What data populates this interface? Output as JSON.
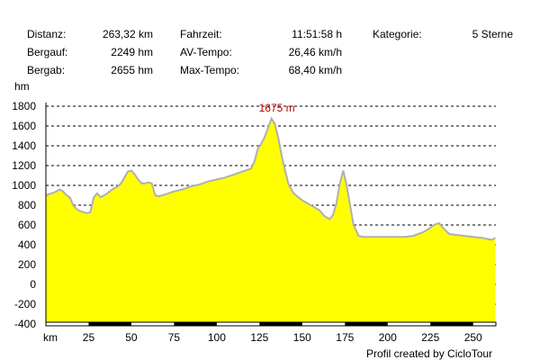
{
  "stats": {
    "distanz_label": "Distanz:",
    "distanz_value": "263,32 km",
    "bergauf_label": "Bergauf:",
    "bergauf_value": "2249 hm",
    "bergab_label": "Bergab:",
    "bergab_value": "2655 hm",
    "fahrzeit_label": "Fahrzeit:",
    "fahrzeit_value": "11:51:58 h",
    "avtempo_label": "AV-Tempo:",
    "avtempo_value": "26,46 km/h",
    "maxtempo_label": "Max-Tempo:",
    "maxtempo_value": "68,40 km/h",
    "kategorie_label": "Kategorie:",
    "kategorie_value": "5 Sterne"
  },
  "footer": "Profil created by CicloTour",
  "chart_data": {
    "type": "area",
    "ylabel": "hm",
    "xlabel": "km",
    "x_tick_labels": [
      "25",
      "50",
      "75",
      "100",
      "125",
      "150",
      "175",
      "200",
      "225",
      "250"
    ],
    "y_tick_labels": [
      "1800",
      "1600",
      "1400",
      "1200",
      "1000",
      "800",
      "600",
      "400",
      "200",
      "0",
      "-200",
      "-400"
    ],
    "xlim": [
      0,
      263.32
    ],
    "ylim": [
      -400,
      1800
    ],
    "grid": true,
    "max_annotation": "1675 m",
    "max_point": [
      132,
      1675
    ],
    "colors": {
      "fill": "#ffff00",
      "line": "#b0b0b0",
      "grid": "#000000",
      "annotation": "#c00000"
    },
    "x": [
      0,
      5,
      8,
      10,
      12,
      14,
      16,
      18,
      20,
      22,
      24,
      26,
      28,
      30,
      32,
      34,
      36,
      38,
      40,
      42,
      44,
      46,
      48,
      50,
      52,
      54,
      56,
      58,
      60,
      62,
      64,
      66,
      68,
      70,
      75,
      80,
      85,
      90,
      95,
      100,
      105,
      110,
      115,
      120,
      122,
      124,
      126,
      128,
      130,
      132,
      134,
      136,
      138,
      140,
      142,
      145,
      150,
      155,
      160,
      163,
      166,
      168,
      170,
      172,
      174,
      176,
      178,
      180,
      183,
      186,
      190,
      195,
      200,
      205,
      210,
      215,
      218,
      221,
      224,
      227,
      230,
      233,
      236,
      240,
      245,
      250,
      255,
      258,
      261,
      263
    ],
    "y": [
      900,
      930,
      960,
      940,
      900,
      880,
      800,
      760,
      740,
      730,
      720,
      730,
      880,
      920,
      880,
      900,
      920,
      950,
      970,
      990,
      1020,
      1080,
      1140,
      1150,
      1110,
      1060,
      1020,
      1020,
      1030,
      1020,
      900,
      890,
      900,
      910,
      940,
      960,
      990,
      1010,
      1040,
      1060,
      1080,
      1110,
      1140,
      1170,
      1240,
      1370,
      1420,
      1490,
      1580,
      1675,
      1620,
      1480,
      1300,
      1150,
      1010,
      920,
      850,
      800,
      750,
      690,
      660,
      700,
      820,
      1020,
      1150,
      1000,
      800,
      600,
      490,
      480,
      480,
      480,
      480,
      480,
      480,
      490,
      510,
      530,
      560,
      600,
      620,
      560,
      510,
      500,
      490,
      480,
      470,
      460,
      450,
      470
    ]
  }
}
